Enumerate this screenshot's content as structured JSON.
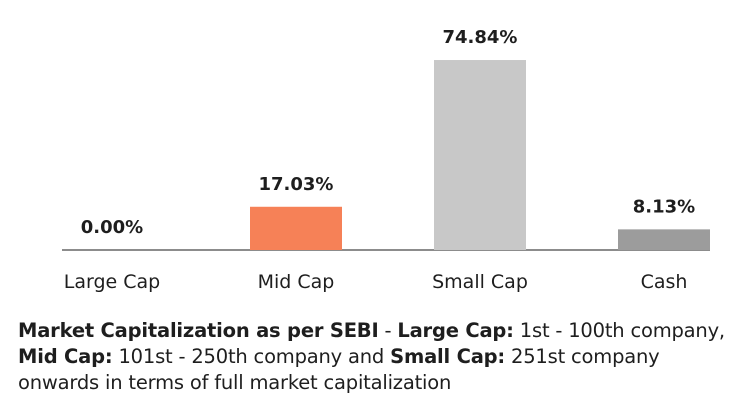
{
  "chart_data": {
    "type": "bar",
    "categories": [
      "Large Cap",
      "Mid Cap",
      "Small Cap",
      "Cash"
    ],
    "values": [
      0.0,
      17.03,
      74.84,
      8.13
    ],
    "data_labels": [
      "0.00%",
      "17.03%",
      "74.84%",
      "8.13%"
    ],
    "colors": [
      "#8c8c8c",
      "#f68157",
      "#c8c8c8",
      "#9c9c9c"
    ],
    "ylim": [
      0,
      78
    ],
    "title": "",
    "xlabel": "",
    "ylabel": ""
  },
  "caption": {
    "part1_bold": "Market Capitalization as per SEBI",
    "part2": " - ",
    "part3_bold": "Large Cap:",
    "part4": " 1st - 100th company, ",
    "part5_bold": "Mid Cap:",
    "part6": " 101st - 250th company and ",
    "part7_bold": "Small Cap:",
    "part8": " 251st company onwards in terms of full market capitalization"
  }
}
